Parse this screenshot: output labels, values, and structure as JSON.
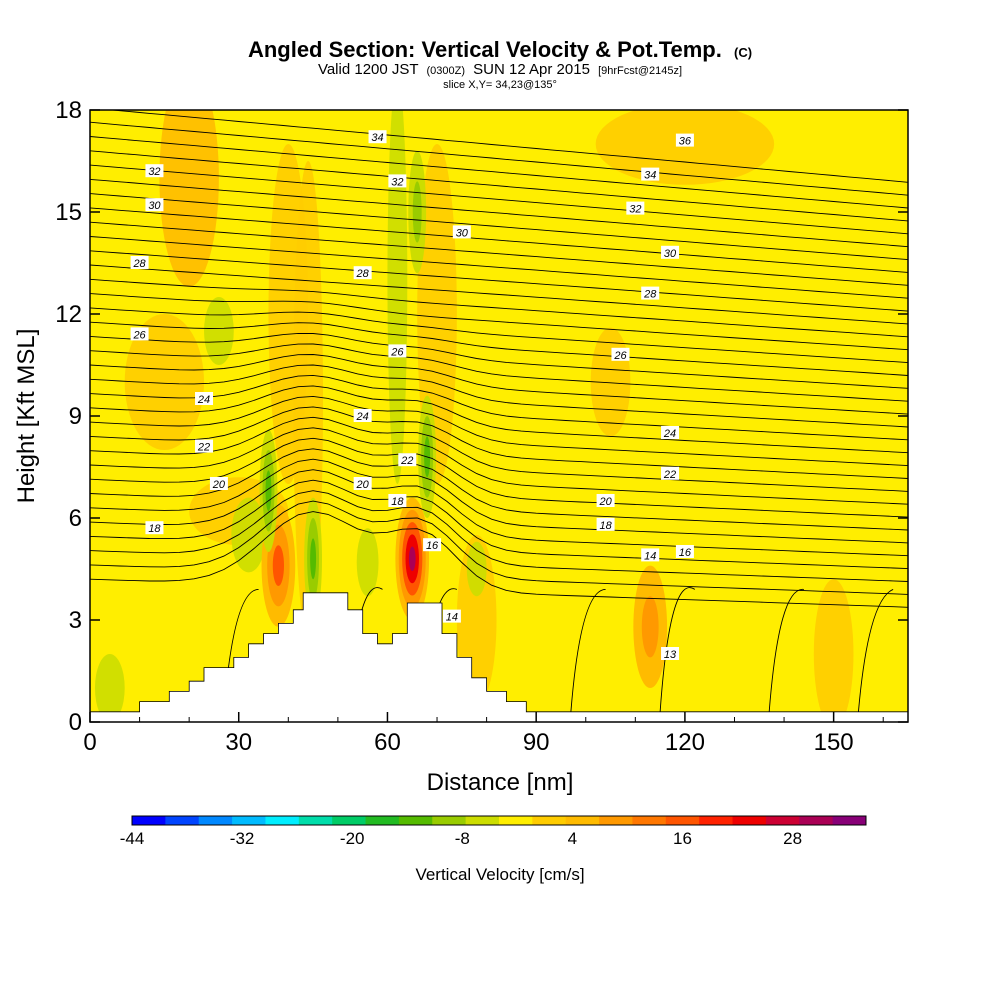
{
  "chart_data": {
    "type": "heatmap",
    "title": "Angled Section: Vertical Velocity & Pot.Temp.",
    "title_suffix": "(C)",
    "subtitle_parts": [
      "Valid 1200 JST",
      "(0300Z)",
      "SUN 12 Apr 2015",
      "[9hrFcst@2145z]"
    ],
    "slice_label": "slice X,Y= 34,23@135°",
    "xlabel": "Distance [nm]",
    "ylabel": "Height [Kft MSL]",
    "xlim": [
      0,
      165
    ],
    "ylim": [
      0,
      18
    ],
    "x_ticks": [
      0,
      30,
      60,
      90,
      120,
      150
    ],
    "y_ticks": [
      0,
      3,
      6,
      9,
      12,
      15,
      18
    ],
    "terrain": [
      [
        0,
        0.3
      ],
      [
        10,
        0.3
      ],
      [
        10,
        0.6
      ],
      [
        16,
        0.6
      ],
      [
        16,
        0.9
      ],
      [
        20,
        0.9
      ],
      [
        20,
        1.2
      ],
      [
        23,
        1.2
      ],
      [
        23,
        1.6
      ],
      [
        29,
        1.6
      ],
      [
        29,
        1.9
      ],
      [
        32,
        1.9
      ],
      [
        32,
        2.3
      ],
      [
        35,
        2.3
      ],
      [
        35,
        2.6
      ],
      [
        38,
        2.6
      ],
      [
        38,
        2.9
      ],
      [
        41,
        2.9
      ],
      [
        41,
        3.3
      ],
      [
        43,
        3.3
      ],
      [
        43,
        3.8
      ],
      [
        52,
        3.8
      ],
      [
        52,
        3.3
      ],
      [
        55,
        3.3
      ],
      [
        55,
        2.6
      ],
      [
        58,
        2.6
      ],
      [
        58,
        2.3
      ],
      [
        61,
        2.3
      ],
      [
        61,
        2.6
      ],
      [
        64,
        2.6
      ],
      [
        64,
        3.5
      ],
      [
        71,
        3.5
      ],
      [
        71,
        2.6
      ],
      [
        74,
        2.6
      ],
      [
        74,
        1.9
      ],
      [
        77,
        1.9
      ],
      [
        77,
        1.3
      ],
      [
        80,
        1.3
      ],
      [
        80,
        0.9
      ],
      [
        84,
        0.9
      ],
      [
        84,
        0.6
      ],
      [
        88,
        0.6
      ],
      [
        88,
        0.3
      ],
      [
        165,
        0.3
      ]
    ],
    "updraft_cores": [
      {
        "x": 38,
        "y": 4.6,
        "value": 18
      },
      {
        "x": 65,
        "y": 4.8,
        "value": 32
      },
      {
        "x": 113,
        "y": 2.8,
        "value": 10
      }
    ],
    "downdraft_cores": [
      {
        "x": 45,
        "y": 4.8,
        "value": -12
      },
      {
        "x": 36,
        "y": 6.8,
        "value": -10
      },
      {
        "x": 68,
        "y": 7.8,
        "value": -10
      },
      {
        "x": 66,
        "y": 15,
        "value": -8
      }
    ],
    "contour_labels": [
      {
        "text": "34",
        "x": 58,
        "y": 17.2
      },
      {
        "text": "36",
        "x": 120,
        "y": 17.1
      },
      {
        "text": "32",
        "x": 13,
        "y": 16.2
      },
      {
        "text": "32",
        "x": 62,
        "y": 15.9
      },
      {
        "text": "34",
        "x": 113,
        "y": 16.1
      },
      {
        "text": "30",
        "x": 13,
        "y": 15.2
      },
      {
        "text": "32",
        "x": 110,
        "y": 15.1
      },
      {
        "text": "30",
        "x": 75,
        "y": 14.4
      },
      {
        "text": "30",
        "x": 117,
        "y": 13.8
      },
      {
        "text": "28",
        "x": 10,
        "y": 13.5
      },
      {
        "text": "28",
        "x": 55,
        "y": 13.2
      },
      {
        "text": "28",
        "x": 113,
        "y": 12.6
      },
      {
        "text": "26",
        "x": 10,
        "y": 11.4
      },
      {
        "text": "26",
        "x": 62,
        "y": 10.9
      },
      {
        "text": "26",
        "x": 107,
        "y": 10.8
      },
      {
        "text": "24",
        "x": 23,
        "y": 9.5
      },
      {
        "text": "24",
        "x": 55,
        "y": 9.0
      },
      {
        "text": "24",
        "x": 117,
        "y": 8.5
      },
      {
        "text": "22",
        "x": 23,
        "y": 8.1
      },
      {
        "text": "22",
        "x": 64,
        "y": 7.7
      },
      {
        "text": "22",
        "x": 117,
        "y": 7.3
      },
      {
        "text": "20",
        "x": 26,
        "y": 7.0
      },
      {
        "text": "20",
        "x": 55,
        "y": 7.0
      },
      {
        "text": "20",
        "x": 104,
        "y": 6.5
      },
      {
        "text": "18",
        "x": 13,
        "y": 5.7
      },
      {
        "text": "18",
        "x": 62,
        "y": 6.5
      },
      {
        "text": "18",
        "x": 104,
        "y": 5.8
      },
      {
        "text": "16",
        "x": 69,
        "y": 5.2
      },
      {
        "text": "14",
        "x": 113,
        "y": 4.9
      },
      {
        "text": "16",
        "x": 120,
        "y": 5.0
      },
      {
        "text": "14",
        "x": 73,
        "y": 3.1
      },
      {
        "text": "13",
        "x": 117,
        "y": 2.0
      }
    ],
    "colorbar": {
      "label": "Vertical Velocity [cm/s]",
      "min": -44,
      "max": 36,
      "step": 4,
      "tick_values": [
        -44,
        -32,
        -20,
        -8,
        4,
        16,
        28
      ],
      "tick_labels": [
        "-44",
        "-32",
        "-20",
        "-8",
        "4",
        "16",
        "28"
      ],
      "colors": [
        "#0000ff",
        "#0044ff",
        "#0088ff",
        "#00bbff",
        "#00eeff",
        "#00ddaa",
        "#00cc66",
        "#22bb22",
        "#55bb00",
        "#99cc00",
        "#ccdd00",
        "#ffee00",
        "#ffcc00",
        "#ffbb00",
        "#ff9900",
        "#ff7700",
        "#ff5500",
        "#ff2200",
        "#ee0000",
        "#cc0033",
        "#aa0055",
        "#880077"
      ]
    }
  }
}
